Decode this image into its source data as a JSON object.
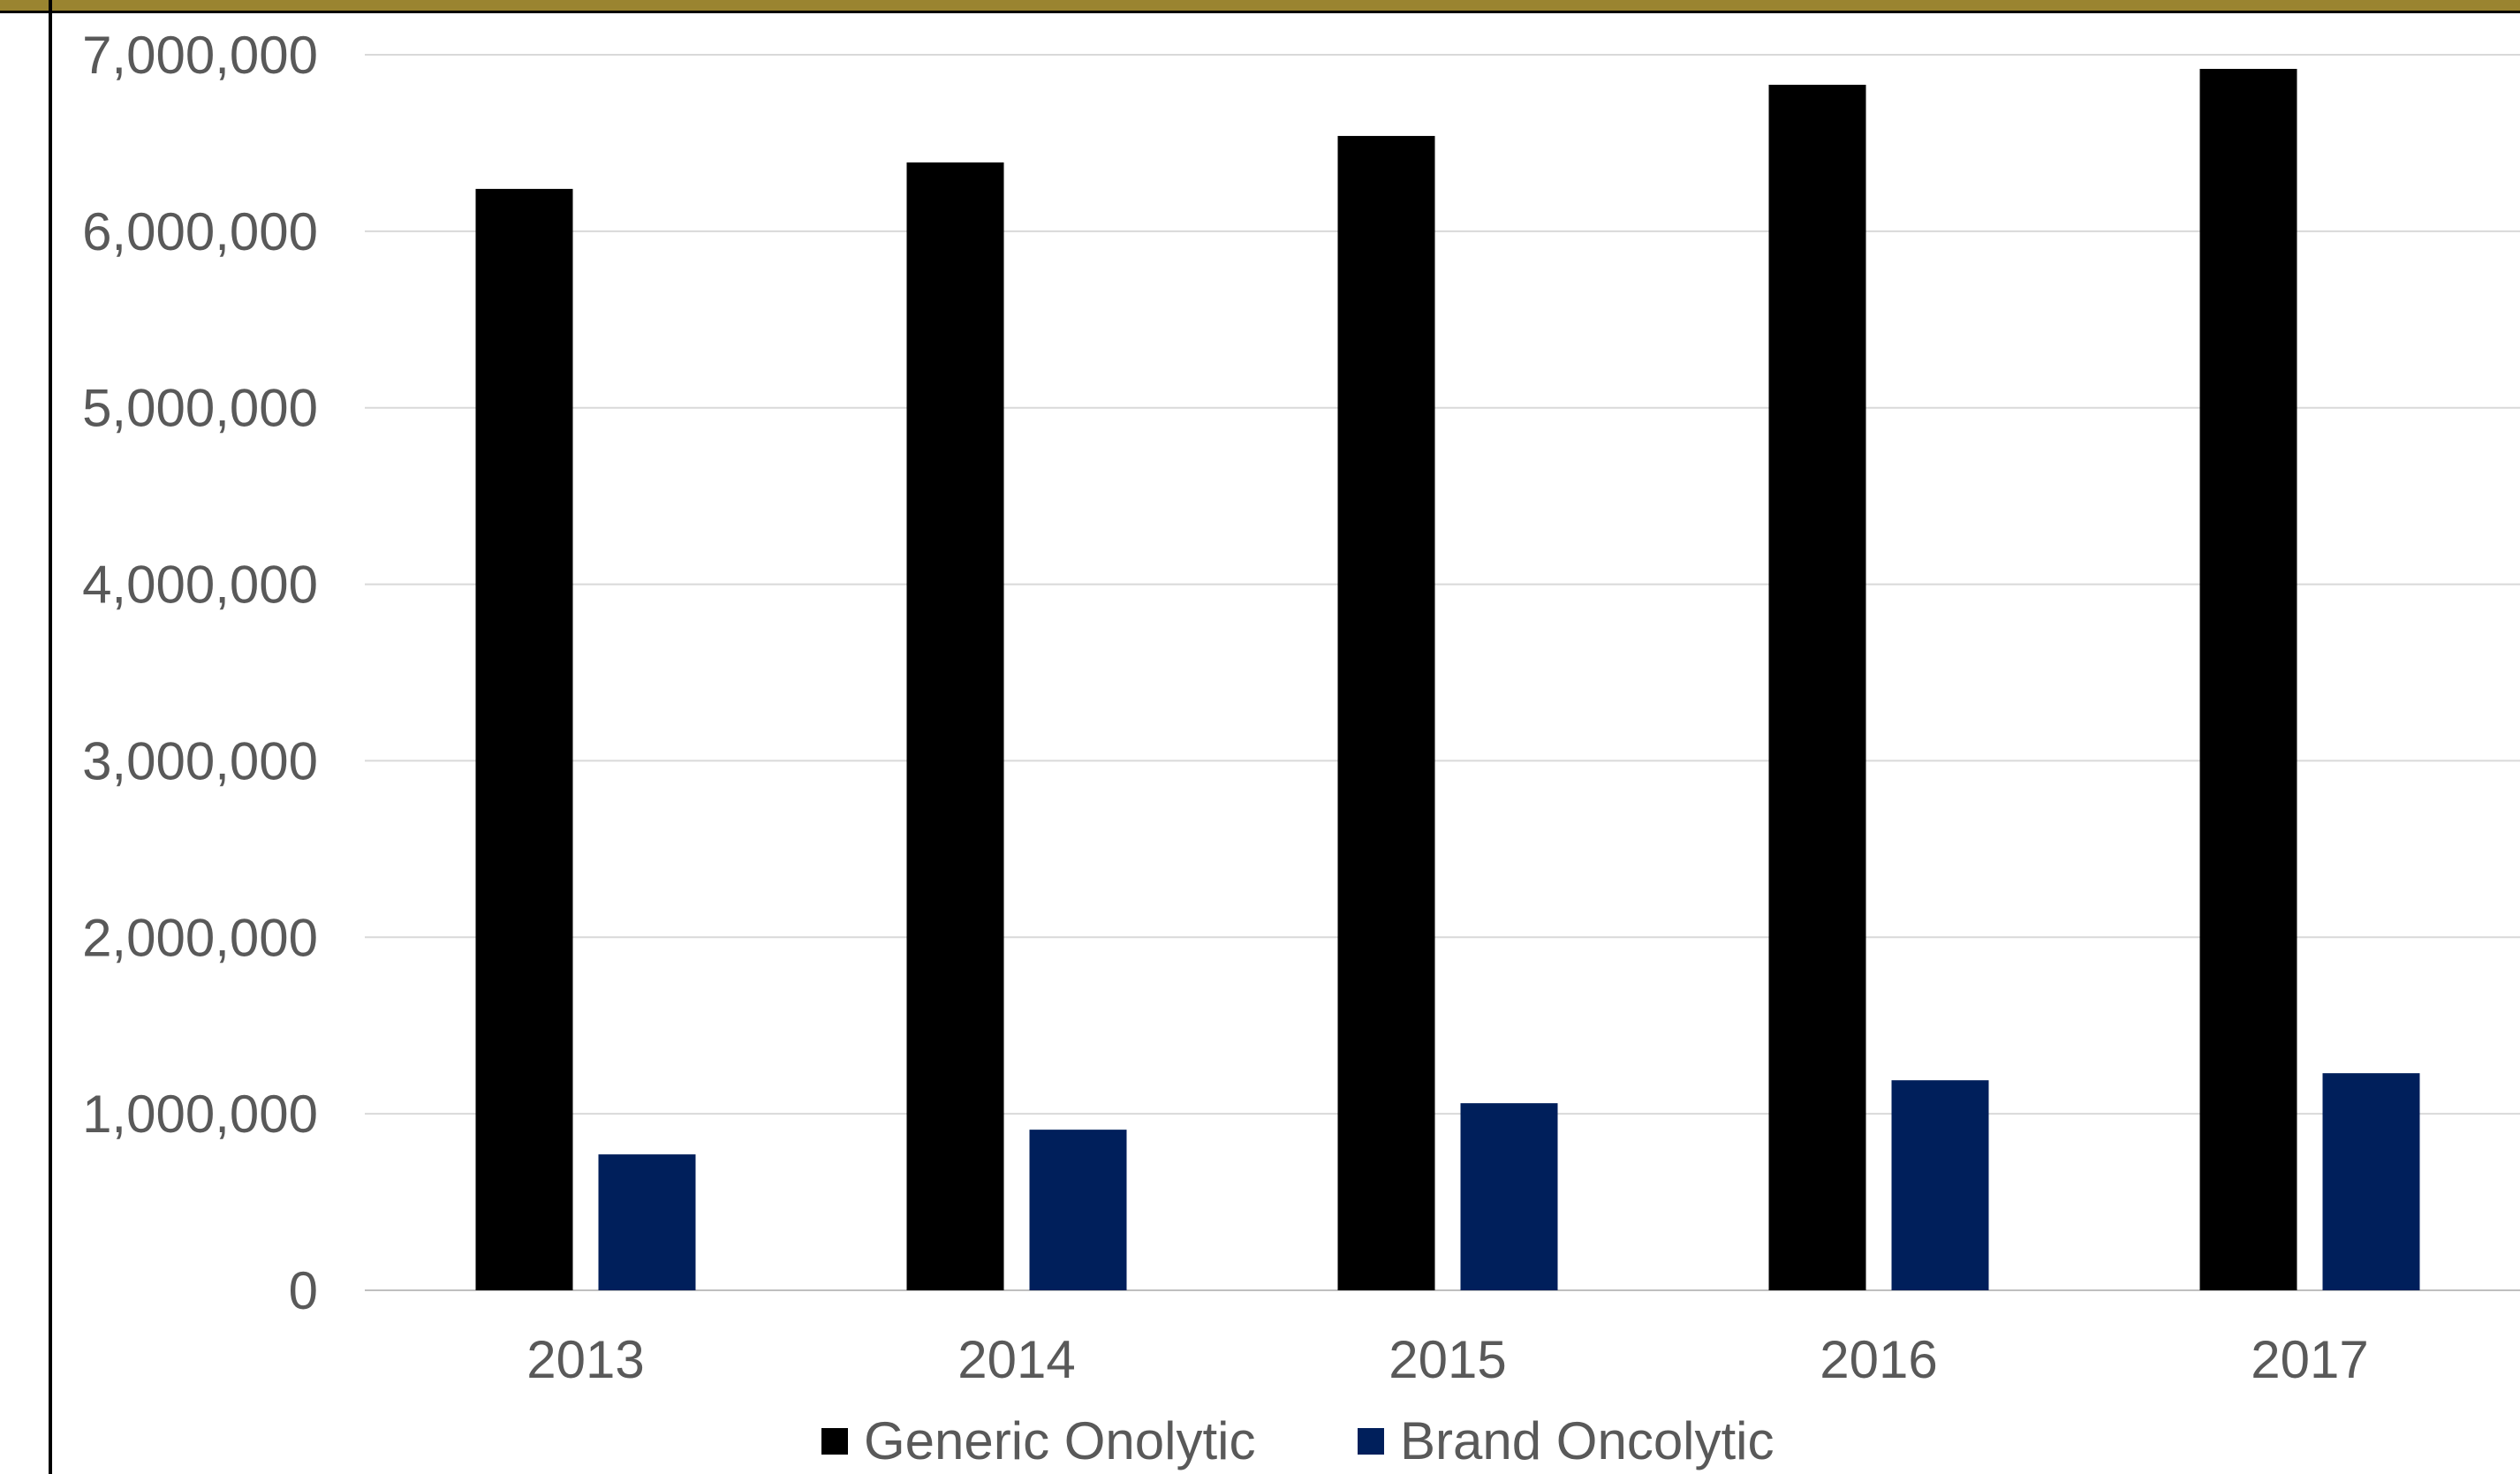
{
  "chart_data": {
    "type": "bar",
    "title": "",
    "xlabel": "",
    "ylabel": "",
    "categories": [
      "2013",
      "2014",
      "2015",
      "2016",
      "2017"
    ],
    "series": [
      {
        "name": "Generic Onolytic",
        "color": "#000000",
        "values": [
          6240000,
          6390000,
          6540000,
          6830000,
          6920000
        ]
      },
      {
        "name": "Brand Oncolytic",
        "color": "#001f5b",
        "values": [
          770000,
          910000,
          1060000,
          1190000,
          1230000
        ]
      }
    ],
    "ylim": [
      0,
      7000000
    ],
    "yticks": [
      0,
      1000000,
      2000000,
      3000000,
      4000000,
      5000000,
      6000000,
      7000000
    ],
    "ytick_labels": [
      "0",
      "1,000,000",
      "2,000,000",
      "3,000,000",
      "4,000,000",
      "5,000,000",
      "6,000,000",
      "7,000,000"
    ],
    "grid": true,
    "legend": "bottom-center"
  },
  "colors": {
    "header_band": "#9a8430",
    "gridline": "#d9d9d9",
    "tick_text": "#595959"
  }
}
